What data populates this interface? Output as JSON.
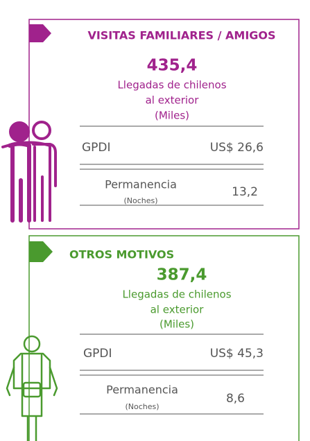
{
  "cards": [
    {
      "title": "VISITAS FAMILIARES / AMIGOS",
      "value": "435,4",
      "description": [
        "Llegadas de chilenos",
        "al exterior",
        "(Miles)"
      ],
      "rows": [
        {
          "label": "GPDI",
          "value": "US$ 26,6"
        },
        {
          "label": "Permanencia",
          "sublabel": "(Noches)",
          "value": "13,2"
        }
      ]
    },
    {
      "title": "OTROS MOTIVOS",
      "value": "387,4",
      "description": [
        "Llegadas de chilenos",
        "al exterior",
        "(Miles)"
      ],
      "rows": [
        {
          "label": "GPDI",
          "value": "US$ 45,3"
        },
        {
          "label": "Permanencia",
          "sublabel": "(Noches)",
          "value": "8,6"
        }
      ]
    }
  ]
}
